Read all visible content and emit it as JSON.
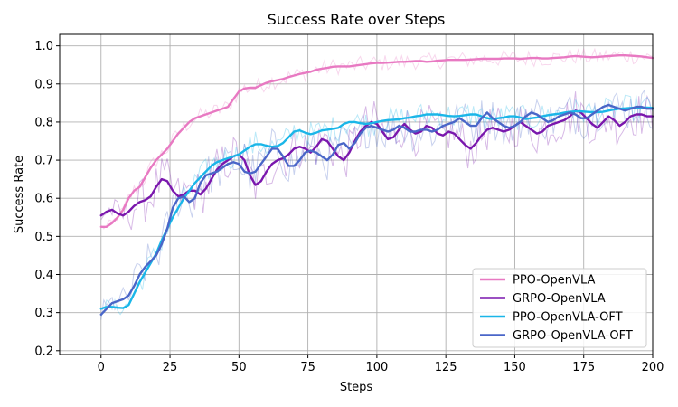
{
  "chart_data": {
    "type": "line",
    "title": "Success Rate over Steps",
    "xlabel": "Steps",
    "ylabel": "Success Rate",
    "xlim": [
      -15,
      200
    ],
    "ylim": [
      0.19,
      1.03
    ],
    "xticks": [
      0,
      25,
      50,
      75,
      100,
      125,
      150,
      175,
      200
    ],
    "yticks": [
      0.2,
      0.3,
      0.4,
      0.5,
      0.6,
      0.7,
      0.8,
      0.9,
      1.0
    ],
    "xtick_labels": [
      "0",
      "25",
      "50",
      "75",
      "100",
      "125",
      "150",
      "175",
      "200"
    ],
    "ytick_labels": [
      "0.2",
      "0.3",
      "0.4",
      "0.5",
      "0.6",
      "0.7",
      "0.8",
      "0.9",
      "1.0"
    ],
    "grid": true,
    "legend_position": "bottom-right",
    "series": [
      {
        "name": "PPO-OpenVLA",
        "color": "#e879c2",
        "x": [
          0,
          2,
          4,
          6,
          8,
          10,
          12,
          14,
          16,
          18,
          20,
          22,
          24,
          26,
          28,
          30,
          32,
          34,
          36,
          38,
          40,
          42,
          44,
          46,
          48,
          50,
          52,
          54,
          56,
          58,
          60,
          62,
          64,
          66,
          68,
          70,
          72,
          74,
          76,
          78,
          80,
          82,
          84,
          86,
          88,
          90,
          92,
          94,
          96,
          98,
          100,
          102,
          104,
          106,
          108,
          110,
          112,
          114,
          116,
          118,
          120,
          122,
          124,
          126,
          128,
          130,
          132,
          134,
          136,
          138,
          140,
          142,
          144,
          146,
          148,
          150,
          152,
          154,
          156,
          158,
          160,
          162,
          164,
          166,
          168,
          170,
          172,
          174,
          176,
          178,
          180,
          182,
          184,
          186,
          188,
          190,
          192,
          194,
          196,
          198,
          200
        ],
        "values": [
          0.525,
          0.525,
          0.535,
          0.55,
          0.57,
          0.6,
          0.62,
          0.63,
          0.655,
          0.68,
          0.7,
          0.715,
          0.73,
          0.75,
          0.77,
          0.785,
          0.8,
          0.81,
          0.815,
          0.82,
          0.825,
          0.83,
          0.835,
          0.84,
          0.86,
          0.88,
          0.888,
          0.89,
          0.89,
          0.897,
          0.903,
          0.907,
          0.91,
          0.913,
          0.918,
          0.922,
          0.926,
          0.929,
          0.932,
          0.937,
          0.94,
          0.942,
          0.945,
          0.946,
          0.946,
          0.946,
          0.948,
          0.95,
          0.952,
          0.954,
          0.955,
          0.955,
          0.956,
          0.957,
          0.958,
          0.958,
          0.959,
          0.96,
          0.96,
          0.958,
          0.959,
          0.961,
          0.962,
          0.963,
          0.963,
          0.963,
          0.963,
          0.964,
          0.965,
          0.966,
          0.966,
          0.966,
          0.966,
          0.967,
          0.967,
          0.967,
          0.966,
          0.967,
          0.968,
          0.968,
          0.967,
          0.967,
          0.968,
          0.969,
          0.97,
          0.972,
          0.973,
          0.972,
          0.971,
          0.97,
          0.971,
          0.972,
          0.973,
          0.974,
          0.975,
          0.975,
          0.974,
          0.973,
          0.972,
          0.97,
          0.968
        ]
      },
      {
        "name": "GRPO-OpenVLA",
        "color": "#7a17ad",
        "x": [
          0,
          2,
          4,
          6,
          8,
          10,
          12,
          14,
          16,
          18,
          20,
          22,
          24,
          26,
          28,
          30,
          32,
          34,
          36,
          38,
          40,
          42,
          44,
          46,
          48,
          50,
          52,
          54,
          56,
          58,
          60,
          62,
          64,
          66,
          68,
          70,
          72,
          74,
          76,
          78,
          80,
          82,
          84,
          86,
          88,
          90,
          92,
          94,
          96,
          98,
          100,
          102,
          104,
          106,
          108,
          110,
          112,
          114,
          116,
          118,
          120,
          122,
          124,
          126,
          128,
          130,
          132,
          134,
          136,
          138,
          140,
          142,
          144,
          146,
          148,
          150,
          152,
          154,
          156,
          158,
          160,
          162,
          164,
          166,
          168,
          170,
          172,
          174,
          176,
          178,
          180,
          182,
          184,
          186,
          188,
          190,
          192,
          194,
          196,
          198,
          200
        ],
        "values": [
          0.555,
          0.565,
          0.57,
          0.56,
          0.555,
          0.565,
          0.58,
          0.59,
          0.595,
          0.605,
          0.63,
          0.65,
          0.645,
          0.62,
          0.605,
          0.61,
          0.62,
          0.62,
          0.61,
          0.625,
          0.65,
          0.675,
          0.69,
          0.7,
          0.71,
          0.715,
          0.7,
          0.66,
          0.635,
          0.645,
          0.67,
          0.69,
          0.7,
          0.705,
          0.715,
          0.73,
          0.735,
          0.73,
          0.72,
          0.735,
          0.755,
          0.75,
          0.73,
          0.71,
          0.7,
          0.72,
          0.75,
          0.775,
          0.79,
          0.8,
          0.795,
          0.775,
          0.755,
          0.76,
          0.78,
          0.795,
          0.78,
          0.77,
          0.775,
          0.79,
          0.785,
          0.77,
          0.765,
          0.775,
          0.77,
          0.755,
          0.74,
          0.73,
          0.745,
          0.765,
          0.78,
          0.785,
          0.78,
          0.775,
          0.78,
          0.79,
          0.8,
          0.79,
          0.78,
          0.77,
          0.775,
          0.79,
          0.795,
          0.8,
          0.805,
          0.815,
          0.83,
          0.825,
          0.81,
          0.795,
          0.785,
          0.8,
          0.815,
          0.805,
          0.79,
          0.8,
          0.815,
          0.82,
          0.82,
          0.815,
          0.815
        ]
      },
      {
        "name": "PPO-OpenVLA-OFT",
        "color": "#1ab6e8",
        "x": [
          0,
          2,
          4,
          6,
          8,
          10,
          12,
          14,
          16,
          18,
          20,
          22,
          24,
          26,
          28,
          30,
          32,
          34,
          36,
          38,
          40,
          42,
          44,
          46,
          48,
          50,
          52,
          54,
          56,
          58,
          60,
          62,
          64,
          66,
          68,
          70,
          72,
          74,
          76,
          78,
          80,
          82,
          84,
          86,
          88,
          90,
          92,
          94,
          96,
          98,
          100,
          102,
          104,
          106,
          108,
          110,
          112,
          114,
          116,
          118,
          120,
          122,
          124,
          126,
          128,
          130,
          132,
          134,
          136,
          138,
          140,
          142,
          144,
          146,
          148,
          150,
          152,
          154,
          156,
          158,
          160,
          162,
          164,
          166,
          168,
          170,
          172,
          174,
          176,
          178,
          180,
          182,
          184,
          186,
          188,
          190,
          192,
          194,
          196,
          198,
          200
        ],
        "values": [
          0.31,
          0.315,
          0.315,
          0.313,
          0.312,
          0.32,
          0.35,
          0.38,
          0.405,
          0.43,
          0.455,
          0.49,
          0.52,
          0.55,
          0.575,
          0.6,
          0.62,
          0.64,
          0.655,
          0.67,
          0.685,
          0.695,
          0.7,
          0.705,
          0.71,
          0.715,
          0.725,
          0.735,
          0.742,
          0.742,
          0.738,
          0.735,
          0.737,
          0.745,
          0.76,
          0.775,
          0.778,
          0.772,
          0.768,
          0.772,
          0.778,
          0.78,
          0.782,
          0.785,
          0.795,
          0.8,
          0.8,
          0.797,
          0.795,
          0.797,
          0.8,
          0.803,
          0.805,
          0.806,
          0.807,
          0.81,
          0.812,
          0.815,
          0.817,
          0.82,
          0.82,
          0.82,
          0.818,
          0.816,
          0.815,
          0.816,
          0.818,
          0.82,
          0.82,
          0.815,
          0.81,
          0.808,
          0.81,
          0.812,
          0.815,
          0.815,
          0.812,
          0.808,
          0.81,
          0.812,
          0.815,
          0.818,
          0.82,
          0.822,
          0.825,
          0.827,
          0.828,
          0.828,
          0.827,
          0.826,
          0.826,
          0.827,
          0.83,
          0.833,
          0.835,
          0.836,
          0.837,
          0.838,
          0.838,
          0.838,
          0.837
        ]
      },
      {
        "name": "GRPO-OpenVLA-OFT",
        "color": "#4a66c8",
        "x": [
          0,
          2,
          4,
          6,
          8,
          10,
          12,
          14,
          16,
          18,
          20,
          22,
          24,
          26,
          28,
          30,
          32,
          34,
          36,
          38,
          40,
          42,
          44,
          46,
          48,
          50,
          52,
          54,
          56,
          58,
          60,
          62,
          64,
          66,
          68,
          70,
          72,
          74,
          76,
          78,
          80,
          82,
          84,
          86,
          88,
          90,
          92,
          94,
          96,
          98,
          100,
          102,
          104,
          106,
          108,
          110,
          112,
          114,
          116,
          118,
          120,
          122,
          124,
          126,
          128,
          130,
          132,
          134,
          136,
          138,
          140,
          142,
          144,
          146,
          148,
          150,
          152,
          154,
          156,
          158,
          160,
          162,
          164,
          166,
          168,
          170,
          172,
          174,
          176,
          178,
          180,
          182,
          184,
          186,
          188,
          190,
          192,
          194,
          196,
          198,
          200
        ],
        "values": [
          0.295,
          0.31,
          0.325,
          0.33,
          0.335,
          0.345,
          0.37,
          0.4,
          0.42,
          0.435,
          0.45,
          0.48,
          0.52,
          0.575,
          0.6,
          0.605,
          0.59,
          0.6,
          0.64,
          0.66,
          0.665,
          0.67,
          0.68,
          0.69,
          0.695,
          0.69,
          0.67,
          0.665,
          0.67,
          0.69,
          0.71,
          0.73,
          0.73,
          0.71,
          0.685,
          0.685,
          0.7,
          0.72,
          0.725,
          0.72,
          0.71,
          0.7,
          0.715,
          0.74,
          0.745,
          0.73,
          0.745,
          0.77,
          0.785,
          0.79,
          0.785,
          0.78,
          0.775,
          0.78,
          0.79,
          0.785,
          0.775,
          0.775,
          0.78,
          0.78,
          0.775,
          0.78,
          0.79,
          0.795,
          0.8,
          0.81,
          0.8,
          0.79,
          0.79,
          0.81,
          0.825,
          0.81,
          0.8,
          0.79,
          0.785,
          0.79,
          0.8,
          0.815,
          0.825,
          0.82,
          0.81,
          0.8,
          0.805,
          0.815,
          0.82,
          0.825,
          0.82,
          0.81,
          0.81,
          0.82,
          0.83,
          0.84,
          0.845,
          0.84,
          0.835,
          0.83,
          0.835,
          0.84,
          0.84,
          0.835,
          0.835
        ]
      }
    ]
  }
}
